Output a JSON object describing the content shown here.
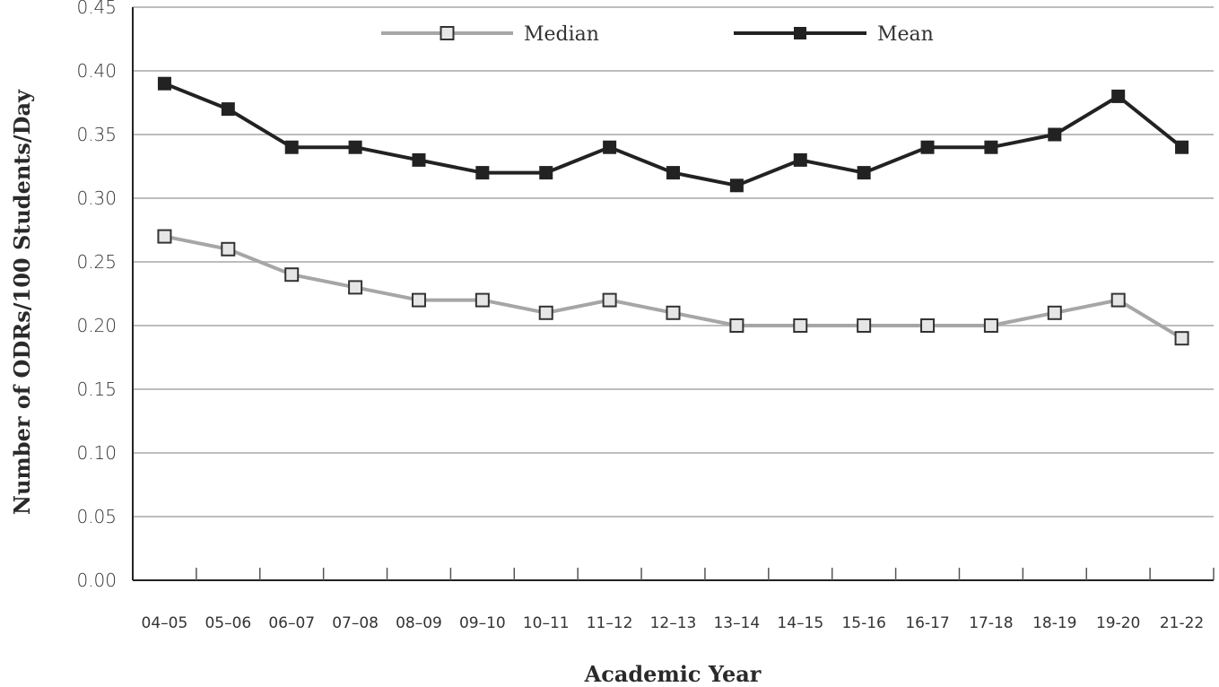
{
  "chart_data": {
    "type": "line",
    "title": "",
    "xlabel": "Academic Year",
    "ylabel": "Number of ODRs/100 Students/Day",
    "categories": [
      "04–05",
      "05–06",
      "06–07",
      "07–08",
      "08–09",
      "09–10",
      "10–11",
      "11–12",
      "12–13",
      "13–14",
      "14–15",
      "15-16",
      "16-17",
      "17-18",
      "18-19",
      "19-20",
      "21-22"
    ],
    "yticks": [
      "0.00",
      "0.05",
      "0.10",
      "0.15",
      "0.20",
      "0.25",
      "0.30",
      "0.35",
      "0.40",
      "0.45"
    ],
    "ylim": [
      0,
      0.45
    ],
    "grid": true,
    "legend_position": "top",
    "series": [
      {
        "name": "Median",
        "color": "#a6a6a6",
        "marker": "square-open",
        "marker_fill": "#e6e6e6",
        "values": [
          0.27,
          0.26,
          0.24,
          0.23,
          0.22,
          0.22,
          0.21,
          0.22,
          0.21,
          0.2,
          0.2,
          0.2,
          0.2,
          0.2,
          0.21,
          0.22,
          0.19
        ]
      },
      {
        "name": "Mean",
        "color": "#222222",
        "marker": "square-filled",
        "marker_fill": "#222222",
        "values": [
          0.39,
          0.37,
          0.34,
          0.34,
          0.33,
          0.32,
          0.32,
          0.34,
          0.32,
          0.31,
          0.33,
          0.32,
          0.34,
          0.34,
          0.35,
          0.38,
          0.34
        ]
      }
    ]
  }
}
